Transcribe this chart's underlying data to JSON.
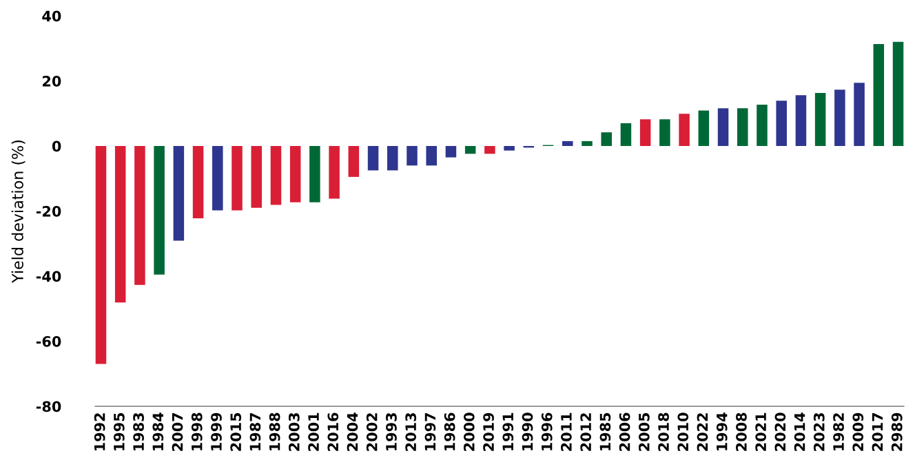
{
  "chart_data": {
    "type": "bar",
    "ylabel": "Yield deviation (%)",
    "categories": [
      "1992",
      "1995",
      "1983",
      "1984",
      "2007",
      "1998",
      "1999",
      "2015",
      "1987",
      "1988",
      "2003",
      "2001",
      "2016",
      "2004",
      "2002",
      "1993",
      "2013",
      "1997",
      "1986",
      "2000",
      "2019",
      "1991",
      "1990",
      "1996",
      "2011",
      "2012",
      "1985",
      "2006",
      "2005",
      "2018",
      "2010",
      "2022",
      "1994",
      "2008",
      "2021",
      "2020",
      "2014",
      "2023",
      "1982",
      "2009",
      "2017",
      "2989"
    ],
    "values": [
      -67,
      -48.1,
      -42.7,
      -39.5,
      -29.1,
      -22.2,
      -19.8,
      -19.8,
      -19.0,
      -18.1,
      -17.3,
      -17.3,
      -16.2,
      -9.5,
      -7.5,
      -7.5,
      -6.0,
      -6.0,
      -3.5,
      -2.4,
      -2.4,
      -1.4,
      -0.5,
      0.3,
      1.5,
      1.5,
      4.2,
      7.0,
      8.2,
      8.2,
      9.9,
      10.9,
      11.6,
      11.6,
      12.7,
      13.9,
      15.6,
      16.3,
      17.3,
      19.4,
      31.3,
      32.0
    ],
    "colors": [
      "#d91f36",
      "#d91f36",
      "#d91f36",
      "#006837",
      "#2e368f",
      "#d91f36",
      "#2e368f",
      "#d91f36",
      "#d91f36",
      "#d91f36",
      "#d91f36",
      "#006837",
      "#d91f36",
      "#d91f36",
      "#2e368f",
      "#2e368f",
      "#2e368f",
      "#2e368f",
      "#2e368f",
      "#006837",
      "#d91f36",
      "#2e368f",
      "#2e368f",
      "#006837",
      "#2e368f",
      "#006837",
      "#006837",
      "#006837",
      "#d91f36",
      "#006837",
      "#d91f36",
      "#006837",
      "#2e368f",
      "#006837",
      "#006837",
      "#2e368f",
      "#2e368f",
      "#006837",
      "#2e368f",
      "#2e368f",
      "#006837",
      "#006837"
    ],
    "ylim": [
      -80,
      40
    ],
    "yticks": [
      -80,
      -60,
      -40,
      -20,
      0,
      20,
      40
    ],
    "grid": false,
    "legend": false
  }
}
